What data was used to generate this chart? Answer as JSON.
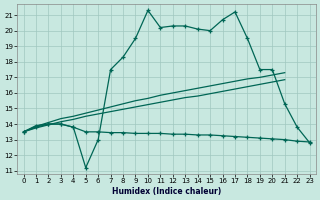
{
  "xlabel": "Humidex (Indice chaleur)",
  "xlim": [
    -0.5,
    23.5
  ],
  "ylim": [
    10.8,
    21.7
  ],
  "yticks": [
    11,
    12,
    13,
    14,
    15,
    16,
    17,
    18,
    19,
    20,
    21
  ],
  "xticks": [
    0,
    1,
    2,
    3,
    4,
    5,
    6,
    7,
    8,
    9,
    10,
    11,
    12,
    13,
    14,
    15,
    16,
    17,
    18,
    19,
    20,
    21,
    22,
    23
  ],
  "bg_color": "#c8e8e0",
  "grid_color": "#a0c8c0",
  "line_color": "#006655",
  "curve1_x": [
    0,
    1,
    2,
    3,
    4,
    5,
    6,
    7,
    8,
    9,
    10,
    11,
    12,
    13,
    14,
    15,
    16,
    17,
    18,
    19,
    20,
    21,
    22,
    23
  ],
  "curve1_y": [
    13.5,
    13.9,
    14.0,
    14.0,
    13.8,
    11.2,
    13.0,
    17.5,
    18.3,
    19.5,
    21.3,
    20.2,
    20.3,
    20.3,
    20.1,
    20.0,
    20.7,
    21.2,
    19.5,
    17.5,
    17.5,
    15.3,
    13.8,
    12.8
  ],
  "curve2_x": [
    0,
    1,
    2,
    3,
    4,
    5,
    6,
    7,
    8,
    9,
    10,
    11,
    12,
    13,
    14,
    15,
    16,
    17,
    18,
    19,
    20,
    21,
    22,
    23
  ],
  "curve2_y": [
    13.5,
    13.8,
    14.0,
    14.0,
    13.8,
    13.5,
    13.5,
    13.45,
    13.45,
    13.4,
    13.4,
    13.4,
    13.35,
    13.35,
    13.3,
    13.3,
    13.25,
    13.2,
    13.15,
    13.1,
    13.05,
    13.0,
    12.9,
    12.85
  ],
  "curve3_x": [
    0,
    1,
    2,
    3,
    4,
    5,
    6,
    7,
    8,
    9,
    10,
    11,
    12,
    13,
    14,
    15,
    16,
    17,
    18,
    19,
    20,
    21
  ],
  "curve3_y": [
    13.5,
    13.85,
    14.1,
    14.35,
    14.5,
    14.7,
    14.9,
    15.1,
    15.3,
    15.5,
    15.65,
    15.85,
    16.0,
    16.15,
    16.3,
    16.45,
    16.6,
    16.75,
    16.9,
    17.0,
    17.15,
    17.3
  ],
  "curve4_x": [
    0,
    1,
    2,
    3,
    4,
    5,
    6,
    7,
    8,
    9,
    10,
    11,
    12,
    13,
    14,
    15,
    16,
    17,
    18,
    19,
    20,
    21
  ],
  "curve4_y": [
    13.5,
    13.75,
    13.95,
    14.15,
    14.3,
    14.5,
    14.65,
    14.8,
    14.95,
    15.1,
    15.25,
    15.4,
    15.55,
    15.7,
    15.8,
    15.95,
    16.1,
    16.25,
    16.4,
    16.55,
    16.7,
    16.85
  ]
}
